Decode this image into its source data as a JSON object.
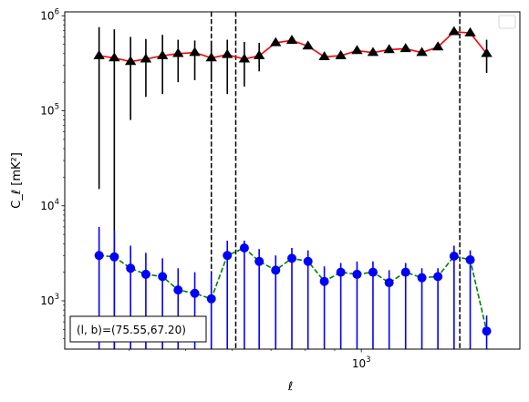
{
  "chart_data": {
    "type": "line",
    "xscale": "log",
    "yscale": "log",
    "xlim": [
      310,
      1870
    ],
    "ylim": [
      310,
      1100000
    ],
    "xlabel": "ℓ",
    "ylabel": "C_ℓ  [mK²]",
    "x_tick_labels": [
      {
        "value": 1000,
        "base": "10",
        "exp": "3"
      }
    ],
    "y_tick_labels": [
      {
        "value": 1000,
        "base": "10",
        "exp": "3"
      },
      {
        "value": 10000,
        "base": "10",
        "exp": "4"
      },
      {
        "value": 100000,
        "base": "10",
        "exp": "5"
      },
      {
        "value": 1000000,
        "base": "10",
        "exp": "6"
      }
    ],
    "annotation": "(l, b)=(75.55,67.20)",
    "legend": {
      "placement": "top-right",
      "entries": []
    },
    "vlines": [
      553,
      609,
      1475
    ],
    "series": [
      {
        "color": "#ff0000",
        "linestyle": "solid",
        "marker": "triangle",
        "marker_color": "#000000",
        "error_color": "#000000",
        "x": [
          355,
          377,
          402,
          427,
          456,
          485,
          518,
          553,
          589,
          630,
          668,
          713,
          760,
          810,
          864,
          922,
          983,
          1047,
          1116,
          1191,
          1270,
          1353,
          1442,
          1537,
          1640,
          1750
        ],
        "y": [
          380000,
          360000,
          330000,
          350000,
          380000,
          400000,
          410000,
          360000,
          390000,
          350000,
          380000,
          520000,
          550000,
          480000,
          370000,
          380000,
          430000,
          410000,
          440000,
          450000,
          410000,
          470000,
          680000,
          660000,
          400000,
          0
        ],
        "yerr_low": [
          15000,
          0,
          80000,
          140000,
          150000,
          200000,
          210000,
          200000,
          150000,
          180000,
          260000,
          0,
          0,
          0,
          0,
          0,
          0,
          0,
          0,
          0,
          0,
          0,
          0,
          0,
          250000,
          0
        ],
        "yerr_high": [
          760000,
          720000,
          600000,
          570000,
          630000,
          560000,
          550000,
          540000,
          560000,
          530000,
          520000,
          0,
          0,
          0,
          0,
          0,
          0,
          0,
          0,
          0,
          0,
          0,
          0,
          0,
          560000,
          0
        ]
      },
      {
        "color": "#008000",
        "linestyle": "dashed",
        "marker": "circle",
        "marker_color": "#0000ff",
        "error_color": "#0000ff",
        "x": [
          355,
          377,
          402,
          427,
          456,
          485,
          518,
          553,
          589,
          630,
          668,
          713,
          760,
          810,
          864,
          922,
          983,
          1047,
          1116,
          1191,
          1270,
          1353,
          1442,
          1537,
          1640,
          1750
        ],
        "y": [
          3000,
          2900,
          2200,
          1900,
          1800,
          1300,
          1200,
          1050,
          3000,
          3600,
          2600,
          2100,
          2800,
          2600,
          1600,
          2000,
          1900,
          2000,
          1550,
          2000,
          1750,
          1800,
          2950,
          2700,
          480,
          0
        ],
        "yerr_low": [
          0,
          0,
          0,
          0,
          0,
          0,
          0,
          0,
          0,
          0,
          0,
          0,
          0,
          0,
          0,
          0,
          0,
          0,
          0,
          0,
          0,
          0,
          0,
          0,
          300,
          0
        ],
        "yerr_high": [
          6000,
          5500,
          3800,
          3200,
          2800,
          2200,
          2000,
          1900,
          4300,
          4300,
          3500,
          3000,
          3600,
          3400,
          2300,
          2500,
          2600,
          2600,
          2100,
          2500,
          2200,
          2200,
          3800,
          3400,
          700,
          0
        ]
      }
    ]
  }
}
